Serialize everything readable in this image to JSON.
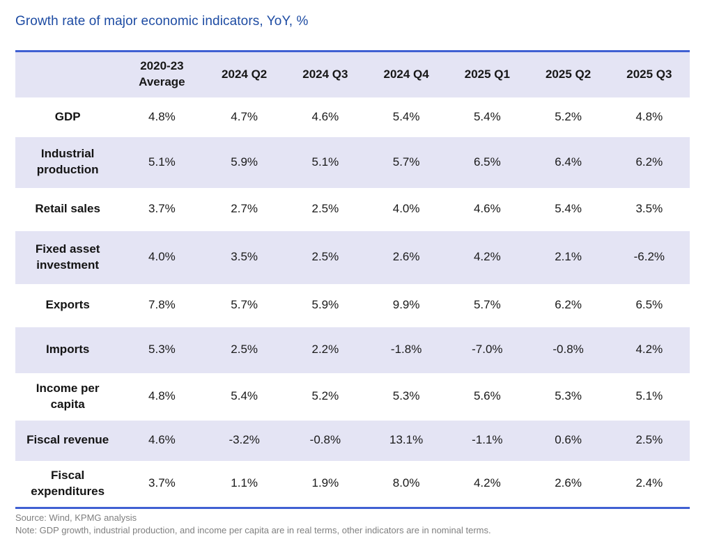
{
  "title": "Growth rate of major economic indicators, YoY, %",
  "chart_data": {
    "type": "table",
    "title": "Growth rate of major economic indicators, YoY, %",
    "unit": "YoY, %",
    "columns": [
      "",
      "2020-23 Average",
      "2024 Q2",
      "2024 Q3",
      "2024 Q4",
      "2025 Q1",
      "2025 Q2",
      "2025 Q3"
    ],
    "rows": [
      {
        "label": "GDP",
        "values": [
          "4.8%",
          "4.7%",
          "4.6%",
          "5.4%",
          "5.4%",
          "5.2%",
          "4.8%"
        ]
      },
      {
        "label": "Industrial production",
        "values": [
          "5.1%",
          "5.9%",
          "5.1%",
          "5.7%",
          "6.5%",
          "6.4%",
          "6.2%"
        ]
      },
      {
        "label": "Retail sales",
        "values": [
          "3.7%",
          "2.7%",
          "2.5%",
          "4.0%",
          "4.6%",
          "5.4%",
          "3.5%"
        ]
      },
      {
        "label": "Fixed asset investment",
        "values": [
          "4.0%",
          "3.5%",
          "2.5%",
          "2.6%",
          "4.2%",
          "2.1%",
          "-6.2%"
        ]
      },
      {
        "label": "Exports",
        "values": [
          "7.8%",
          "5.7%",
          "5.9%",
          "9.9%",
          "5.7%",
          "6.2%",
          "6.5%"
        ]
      },
      {
        "label": "Imports",
        "values": [
          "5.3%",
          "2.5%",
          "2.2%",
          "-1.8%",
          "-7.0%",
          "-0.8%",
          "4.2%"
        ]
      },
      {
        "label": "Income per capita",
        "values": [
          "4.8%",
          "5.4%",
          "5.2%",
          "5.3%",
          "5.6%",
          "5.3%",
          "5.1%"
        ]
      },
      {
        "label": "Fiscal revenue",
        "values": [
          "4.6%",
          "-3.2%",
          "-0.8%",
          "13.1%",
          "-1.1%",
          "0.6%",
          "2.5%"
        ]
      },
      {
        "label": "Fiscal expenditures",
        "values": [
          "3.7%",
          "1.1%",
          "1.9%",
          "8.0%",
          "4.2%",
          "2.6%",
          "2.4%"
        ]
      }
    ],
    "layout": {
      "striped_rows": true,
      "stripe_color": "#E4E4F4",
      "rule_color": "#4060D2",
      "gridlines": false
    }
  },
  "footer": {
    "source": "Source: Wind, KPMG analysis",
    "note": "Note: GDP growth, industrial production, and income per capita are in real terms, other indicators are in nominal terms."
  },
  "colors": {
    "title_blue": "#1E4CA3",
    "rule_blue": "#4060D2",
    "band_lavender": "#E4E4F4",
    "footer_gray": "#7F7F7F"
  }
}
